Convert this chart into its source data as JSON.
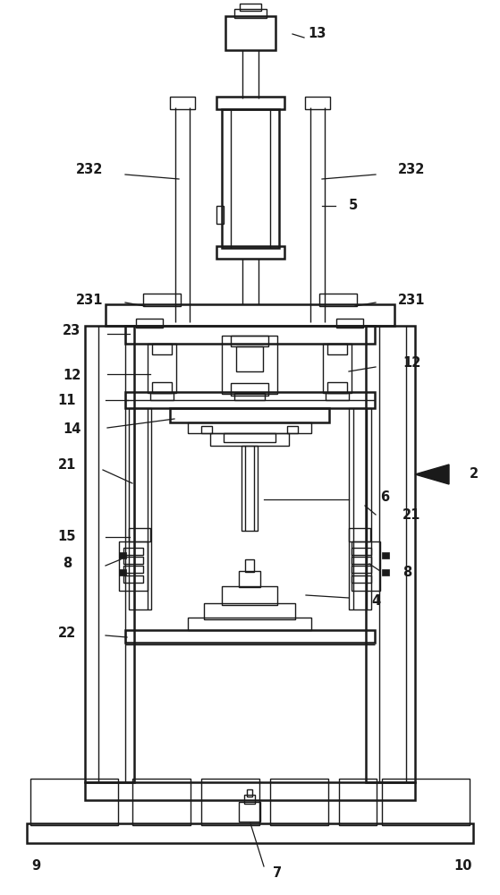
{
  "background_color": "#ffffff",
  "line_color": "#1a1a1a",
  "lw": 1.0,
  "tlw": 1.8,
  "fig_width": 5.59,
  "fig_height": 10.0,
  "label_fontsize": 10.5
}
